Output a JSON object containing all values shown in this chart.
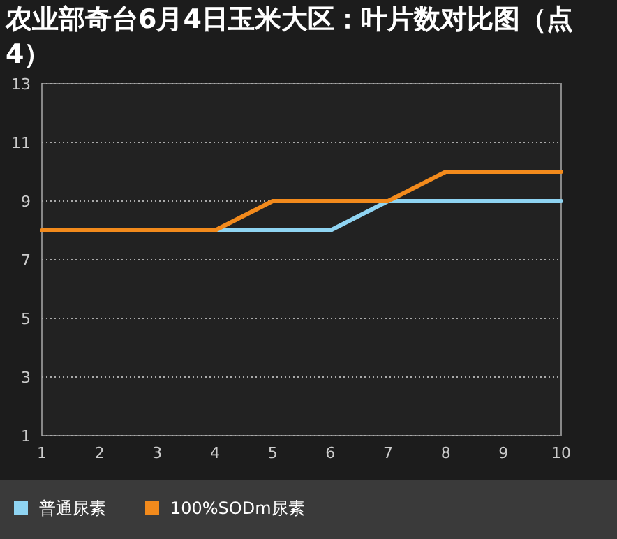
{
  "chart_data": {
    "type": "line",
    "title": "农业部奇台6月4日玉米大区：叶片数对比图（点4）",
    "x": [
      1,
      2,
      3,
      4,
      5,
      6,
      7,
      8,
      9,
      10
    ],
    "series": [
      {
        "name": "普通尿素",
        "color": "#8fd4f2",
        "values": [
          null,
          null,
          null,
          8,
          8,
          8,
          9,
          9,
          9,
          9
        ]
      },
      {
        "name": "100%SODm尿素",
        "color": "#f28a1c",
        "values": [
          8,
          8,
          8,
          8,
          9,
          9,
          9,
          10,
          10,
          10
        ]
      }
    ],
    "xlim": [
      1,
      10
    ],
    "xticks": [
      1,
      2,
      3,
      4,
      5,
      6,
      7,
      8,
      9,
      10
    ],
    "ylim": [
      1,
      13
    ],
    "yticks": [
      1,
      3,
      5,
      7,
      9,
      11,
      13
    ],
    "grid": "y",
    "legend": "bottom left",
    "marker": "none",
    "line_style": "solid"
  }
}
